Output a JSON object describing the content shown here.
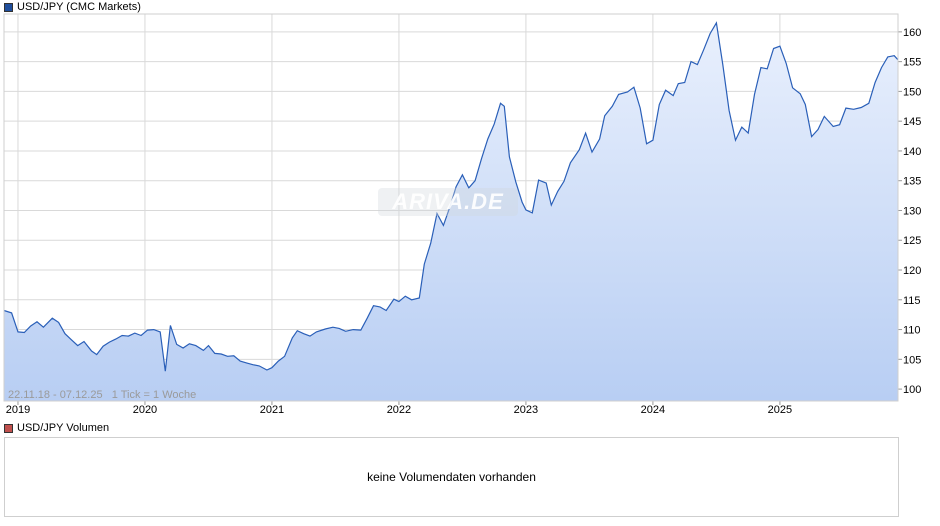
{
  "price_legend": {
    "label": "USD/JPY (CMC Markets)",
    "color": "#1f4e9c"
  },
  "volume_legend": {
    "label": "USD/JPY Volumen",
    "color": "#c0504d"
  },
  "volume_panel": {
    "message": "keine Volumendaten vorhanden"
  },
  "range_label": "22.11.18 - 07.12.25   1 Tick = 1 Woche",
  "watermark": "ARIVA.DE",
  "colors": {
    "line": "#2a5fb8",
    "fill_top": "#e9f0fd",
    "fill_bottom": "#b8cef3",
    "grid": "#d9d9d9"
  },
  "chart_data": {
    "type": "area",
    "title": "USD/JPY (CMC Markets)",
    "xlabel": "",
    "ylabel": "",
    "ylim": [
      98,
      163
    ],
    "xlim": [
      2018.89,
      2025.93
    ],
    "grid": true,
    "y_ticks": [
      100,
      105,
      110,
      115,
      120,
      125,
      130,
      135,
      140,
      145,
      150,
      155,
      160
    ],
    "x_ticks": [
      {
        "label": "2019",
        "x": 2019.0
      },
      {
        "label": "2020",
        "x": 2020.0
      },
      {
        "label": "2021",
        "x": 2021.0
      },
      {
        "label": "2022",
        "x": 2022.0
      },
      {
        "label": "2023",
        "x": 2023.0
      },
      {
        "label": "2024",
        "x": 2024.0
      },
      {
        "label": "2025",
        "x": 2025.0
      }
    ],
    "series": [
      {
        "name": "USD/JPY",
        "points": [
          [
            2018.89,
            113.2
          ],
          [
            2018.95,
            112.8
          ],
          [
            2019.0,
            109.6
          ],
          [
            2019.05,
            109.5
          ],
          [
            2019.1,
            110.6
          ],
          [
            2019.15,
            111.3
          ],
          [
            2019.2,
            110.4
          ],
          [
            2019.27,
            111.9
          ],
          [
            2019.32,
            111.2
          ],
          [
            2019.37,
            109.3
          ],
          [
            2019.42,
            108.3
          ],
          [
            2019.47,
            107.3
          ],
          [
            2019.52,
            108.0
          ],
          [
            2019.58,
            106.4
          ],
          [
            2019.62,
            105.8
          ],
          [
            2019.67,
            107.2
          ],
          [
            2019.72,
            107.9
          ],
          [
            2019.77,
            108.4
          ],
          [
            2019.82,
            109.0
          ],
          [
            2019.87,
            108.9
          ],
          [
            2019.92,
            109.4
          ],
          [
            2019.97,
            109.0
          ],
          [
            2020.02,
            109.9
          ],
          [
            2020.07,
            110.0
          ],
          [
            2020.12,
            109.6
          ],
          [
            2020.16,
            103.0
          ],
          [
            2020.2,
            110.7
          ],
          [
            2020.25,
            107.5
          ],
          [
            2020.3,
            106.9
          ],
          [
            2020.35,
            107.6
          ],
          [
            2020.4,
            107.3
          ],
          [
            2020.46,
            106.5
          ],
          [
            2020.5,
            107.3
          ],
          [
            2020.55,
            106.0
          ],
          [
            2020.6,
            105.9
          ],
          [
            2020.65,
            105.5
          ],
          [
            2020.7,
            105.6
          ],
          [
            2020.75,
            104.7
          ],
          [
            2020.8,
            104.4
          ],
          [
            2020.85,
            104.1
          ],
          [
            2020.9,
            103.9
          ],
          [
            2020.96,
            103.2
          ],
          [
            2021.0,
            103.6
          ],
          [
            2021.05,
            104.7
          ],
          [
            2021.1,
            105.5
          ],
          [
            2021.16,
            108.6
          ],
          [
            2021.2,
            109.8
          ],
          [
            2021.25,
            109.3
          ],
          [
            2021.3,
            108.9
          ],
          [
            2021.35,
            109.6
          ],
          [
            2021.42,
            110.1
          ],
          [
            2021.48,
            110.4
          ],
          [
            2021.53,
            110.2
          ],
          [
            2021.58,
            109.7
          ],
          [
            2021.64,
            110.0
          ],
          [
            2021.7,
            109.9
          ],
          [
            2021.75,
            111.9
          ],
          [
            2021.8,
            114.0
          ],
          [
            2021.85,
            113.8
          ],
          [
            2021.9,
            113.2
          ],
          [
            2021.96,
            115.1
          ],
          [
            2022.0,
            114.7
          ],
          [
            2022.05,
            115.6
          ],
          [
            2022.1,
            115.0
          ],
          [
            2022.16,
            115.3
          ],
          [
            2022.2,
            121.0
          ],
          [
            2022.25,
            124.5
          ],
          [
            2022.3,
            129.5
          ],
          [
            2022.35,
            127.5
          ],
          [
            2022.4,
            130.5
          ],
          [
            2022.45,
            134.0
          ],
          [
            2022.5,
            136.0
          ],
          [
            2022.55,
            133.8
          ],
          [
            2022.6,
            135.0
          ],
          [
            2022.65,
            138.7
          ],
          [
            2022.7,
            142.0
          ],
          [
            2022.75,
            144.5
          ],
          [
            2022.8,
            148.0
          ],
          [
            2022.83,
            147.5
          ],
          [
            2022.87,
            139.0
          ],
          [
            2022.92,
            134.8
          ],
          [
            2022.97,
            131.4
          ],
          [
            2023.0,
            130.1
          ],
          [
            2023.05,
            129.6
          ],
          [
            2023.1,
            135.1
          ],
          [
            2023.16,
            134.6
          ],
          [
            2023.2,
            130.9
          ],
          [
            2023.25,
            133.2
          ],
          [
            2023.3,
            134.9
          ],
          [
            2023.35,
            138.0
          ],
          [
            2023.42,
            140.2
          ],
          [
            2023.47,
            143.0
          ],
          [
            2023.52,
            139.8
          ],
          [
            2023.58,
            142.0
          ],
          [
            2023.62,
            145.9
          ],
          [
            2023.68,
            147.5
          ],
          [
            2023.73,
            149.5
          ],
          [
            2023.8,
            149.9
          ],
          [
            2023.85,
            150.7
          ],
          [
            2023.9,
            147.2
          ],
          [
            2023.95,
            141.2
          ],
          [
            2024.0,
            141.8
          ],
          [
            2024.05,
            147.8
          ],
          [
            2024.1,
            150.2
          ],
          [
            2024.16,
            149.3
          ],
          [
            2024.2,
            151.3
          ],
          [
            2024.25,
            151.5
          ],
          [
            2024.3,
            155.0
          ],
          [
            2024.35,
            154.5
          ],
          [
            2024.4,
            157.0
          ],
          [
            2024.45,
            159.7
          ],
          [
            2024.5,
            161.5
          ],
          [
            2024.55,
            154.5
          ],
          [
            2024.6,
            146.8
          ],
          [
            2024.65,
            141.8
          ],
          [
            2024.7,
            144.0
          ],
          [
            2024.75,
            143.0
          ],
          [
            2024.8,
            149.5
          ],
          [
            2024.85,
            154.0
          ],
          [
            2024.9,
            153.8
          ],
          [
            2024.95,
            157.2
          ],
          [
            2025.0,
            157.6
          ],
          [
            2025.05,
            154.7
          ],
          [
            2025.1,
            150.6
          ],
          [
            2025.16,
            149.6
          ],
          [
            2025.2,
            147.8
          ],
          [
            2025.25,
            142.4
          ],
          [
            2025.3,
            143.6
          ],
          [
            2025.35,
            145.8
          ],
          [
            2025.42,
            144.1
          ],
          [
            2025.47,
            144.4
          ],
          [
            2025.52,
            147.2
          ],
          [
            2025.58,
            147.0
          ],
          [
            2025.64,
            147.3
          ],
          [
            2025.7,
            148.0
          ],
          [
            2025.75,
            151.5
          ],
          [
            2025.8,
            154.0
          ],
          [
            2025.85,
            155.8
          ],
          [
            2025.9,
            156.0
          ],
          [
            2025.93,
            155.3
          ]
        ]
      }
    ]
  }
}
